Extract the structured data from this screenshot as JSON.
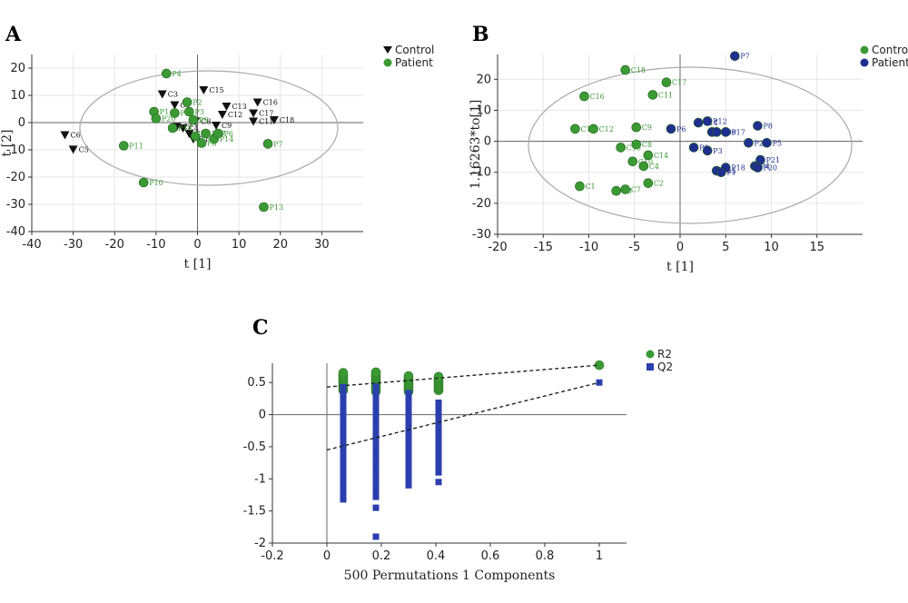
{
  "chart_data": [
    {
      "panel": "A",
      "type": "scatter",
      "xlabel": "t [1]",
      "ylabel": "t [2]",
      "xlim": [
        -40,
        40
      ],
      "ylim": [
        -40,
        25
      ],
      "xticks": [
        -40,
        -30,
        -20,
        -10,
        0,
        10,
        20,
        30
      ],
      "yticks": [
        -40,
        -30,
        -20,
        -10,
        0,
        10,
        20
      ],
      "legend": "top-right",
      "series": [
        {
          "name": "Control",
          "color": "#111111",
          "marker": "triangle-down",
          "label_color": "#111111",
          "points": [
            {
              "label": "C6",
              "x": -32,
              "y": -4.5
            },
            {
              "label": "C5",
              "x": -30,
              "y": -9.8
            },
            {
              "label": "C3",
              "x": -8.5,
              "y": 10.5
            },
            {
              "label": "C1",
              "x": -5.5,
              "y": 6.5
            },
            {
              "label": "C7",
              "x": -5,
              "y": -1.5
            },
            {
              "label": "C4",
              "x": -3.5,
              "y": -2
            },
            {
              "label": "C10",
              "x": -2,
              "y": -4
            },
            {
              "label": "C14",
              "x": -1,
              "y": -6
            },
            {
              "label": "C8",
              "x": -0.5,
              "y": 0.5
            },
            {
              "label": "C15",
              "x": 1.5,
              "y": 12
            },
            {
              "label": "C12",
              "x": 6,
              "y": 3
            },
            {
              "label": "C13",
              "x": 7,
              "y": 6
            },
            {
              "label": "C9",
              "x": 4.5,
              "y": -1
            },
            {
              "label": "C16",
              "x": 14.5,
              "y": 7.5
            },
            {
              "label": "C17",
              "x": 13.5,
              "y": 3.5
            },
            {
              "label": "C11",
              "x": 13.5,
              "y": 0.5
            },
            {
              "label": "C18",
              "x": 18.5,
              "y": 1
            }
          ]
        },
        {
          "name": "Patient",
          "color": "#3c9a35",
          "marker": "circle",
          "label_color": "#3c9a35",
          "points": [
            {
              "label": "P4",
              "x": -7.5,
              "y": 18
            },
            {
              "label": "P2",
              "x": -2.5,
              "y": 7.5
            },
            {
              "label": "P1",
              "x": -10.5,
              "y": 4
            },
            {
              "label": "P20",
              "x": -10,
              "y": 1.5
            },
            {
              "label": "P3",
              "x": -2,
              "y": 4
            },
            {
              "label": "P9",
              "x": -1,
              "y": 1
            },
            {
              "label": "P19",
              "x": -5.5,
              "y": 3.5
            },
            {
              "label": "P18",
              "x": -6,
              "y": -2
            },
            {
              "label": "P16",
              "x": -0.5,
              "y": -5
            },
            {
              "label": "P17",
              "x": 2,
              "y": -4
            },
            {
              "label": "P14",
              "x": 4,
              "y": -6
            },
            {
              "label": "P8",
              "x": 1,
              "y": -7.5
            },
            {
              "label": "P6",
              "x": 5,
              "y": -4
            },
            {
              "label": "P7",
              "x": 17,
              "y": -7.8
            },
            {
              "label": "P11",
              "x": -17.8,
              "y": -8.5
            },
            {
              "label": "P10",
              "x": -13,
              "y": -22
            },
            {
              "label": "P13",
              "x": 16,
              "y": -31
            }
          ]
        }
      ]
    },
    {
      "panel": "B",
      "type": "scatter",
      "xlabel": "t [1]",
      "ylabel": "1.16263*to[1]",
      "xlim": [
        -20,
        20
      ],
      "ylim": [
        -30,
        28
      ],
      "xticks": [
        -20,
        -15,
        -10,
        -5,
        0,
        5,
        10,
        15
      ],
      "yticks": [
        -30,
        -20,
        -10,
        0,
        10,
        20
      ],
      "legend": "top-right",
      "series": [
        {
          "name": "Control",
          "color": "#3c9a35",
          "marker": "circle",
          "label_color": "#3c9a35",
          "points": [
            {
              "label": "C18",
              "x": -6,
              "y": 23
            },
            {
              "label": "C17",
              "x": -1.5,
              "y": 19
            },
            {
              "label": "C16",
              "x": -10.5,
              "y": 14.5
            },
            {
              "label": "C11",
              "x": -3,
              "y": 15
            },
            {
              "label": "C13",
              "x": -11.5,
              "y": 4
            },
            {
              "label": "C12",
              "x": -9.5,
              "y": 4
            },
            {
              "label": "C9",
              "x": -4.8,
              "y": 4.5
            },
            {
              "label": "C15",
              "x": -6.5,
              "y": -2
            },
            {
              "label": "C8",
              "x": -4.8,
              "y": -1
            },
            {
              "label": "C10",
              "x": -5.2,
              "y": -6.5
            },
            {
              "label": "C14",
              "x": -3.5,
              "y": -4.5
            },
            {
              "label": "C4",
              "x": -4,
              "y": -8
            },
            {
              "label": "C1",
              "x": -11,
              "y": -14.5
            },
            {
              "label": "C2",
              "x": -3.5,
              "y": -13.5
            },
            {
              "label": "C3",
              "x": -7,
              "y": -16
            },
            {
              "label": "C7",
              "x": -6,
              "y": -15.5
            }
          ]
        },
        {
          "name": "Patient",
          "color": "#1f2f8f",
          "marker": "circle",
          "label_color": "#1f2f8f",
          "points": [
            {
              "label": "P7",
              "x": 6,
              "y": 27.5
            },
            {
              "label": "P14",
              "x": 2,
              "y": 6
            },
            {
              "label": "P12",
              "x": 3,
              "y": 6.5
            },
            {
              "label": "P8",
              "x": 8.5,
              "y": 5
            },
            {
              "label": "P6",
              "x": -1,
              "y": 4
            },
            {
              "label": "P19",
              "x": 3.5,
              "y": 3
            },
            {
              "label": "P17",
              "x": 5,
              "y": 3
            },
            {
              "label": "P16",
              "x": 4,
              "y": 3
            },
            {
              "label": "P2",
              "x": 7.5,
              "y": -0.5
            },
            {
              "label": "P5",
              "x": 9.5,
              "y": -0.5
            },
            {
              "label": "P9",
              "x": 1.5,
              "y": -2
            },
            {
              "label": "P3",
              "x": 3,
              "y": -3
            },
            {
              "label": "P21",
              "x": 8.8,
              "y": -6
            },
            {
              "label": "P4",
              "x": 8.2,
              "y": -8
            },
            {
              "label": "P18",
              "x": 5,
              "y": -8.5
            },
            {
              "label": "P15",
              "x": 4,
              "y": -9.5
            },
            {
              "label": "P1",
              "x": 4.5,
              "y": -10
            },
            {
              "label": "P20",
              "x": 8.5,
              "y": -8.5
            }
          ]
        }
      ]
    },
    {
      "panel": "C",
      "type": "scatter",
      "xlabel": "500 Permutations 1 Components",
      "ylabel": "",
      "xlim": [
        -0.2,
        1.1
      ],
      "ylim": [
        -2,
        0.8
      ],
      "xticks": [
        -0.2,
        0,
        0.2,
        0.4,
        0.6,
        0.8,
        1
      ],
      "yticks": [
        -2,
        -1.5,
        -1,
        -0.5,
        0,
        0.5
      ],
      "legend": "top-right",
      "series": [
        {
          "name": "R2",
          "color": "#3c9a35",
          "marker": "circle",
          "columns": [
            {
              "x": 0.06,
              "ymin": 0.38,
              "ymax": 0.66
            },
            {
              "x": 0.18,
              "ymin": 0.36,
              "ymax": 0.66
            },
            {
              "x": 0.3,
              "ymin": 0.36,
              "ymax": 0.62
            },
            {
              "x": 0.41,
              "ymin": 0.38,
              "ymax": 0.6
            }
          ],
          "original": {
            "x": 1,
            "y": 0.77
          },
          "regression": {
            "intercept": 0.43,
            "slope": 0.34
          }
        },
        {
          "name": "Q2",
          "color": "#2b3fae",
          "marker": "square",
          "columns": [
            {
              "x": 0.06,
              "ymin": -1.32,
              "ymax": 0.45
            },
            {
              "x": 0.18,
              "ymin": -1.28,
              "ymax": 0.45
            },
            {
              "x": 0.3,
              "ymin": -1.1,
              "ymax": 0.36
            },
            {
              "x": 0.41,
              "ymin": -0.9,
              "ymax": 0.2
            }
          ],
          "outliers": [
            {
              "x": 0.18,
              "y": -1.9
            },
            {
              "x": 0.18,
              "y": -1.45
            },
            {
              "x": 0.41,
              "y": -1.05
            }
          ],
          "original": {
            "x": 1,
            "y": 0.5
          },
          "regression": {
            "intercept": -0.55,
            "slope": 1.05
          }
        }
      ]
    }
  ]
}
